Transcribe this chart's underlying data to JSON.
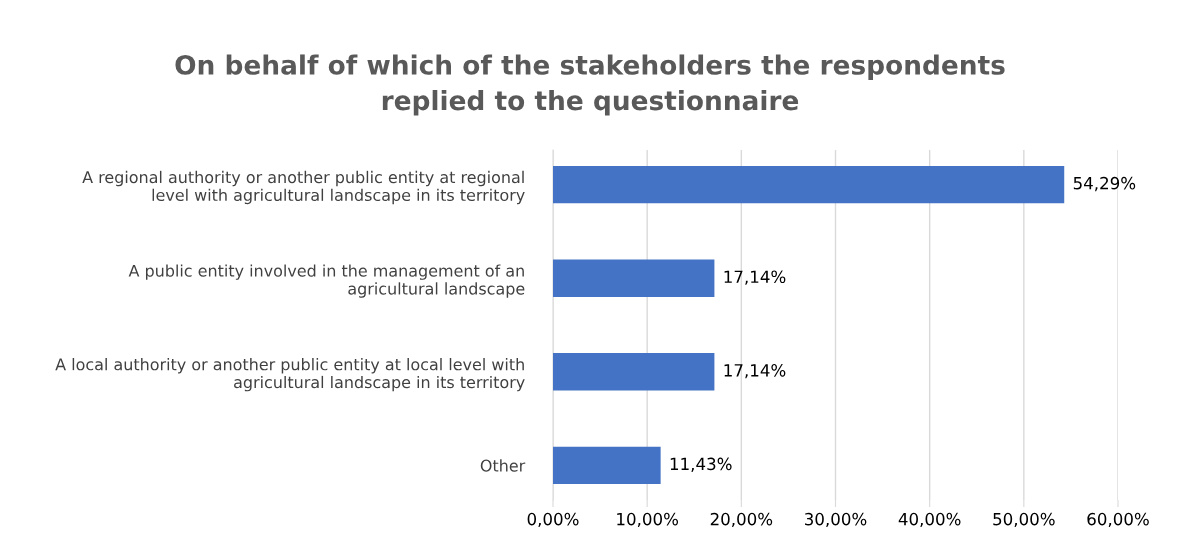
{
  "chart_data": {
    "type": "bar",
    "orientation": "horizontal",
    "title": "On behalf of which of the stakeholders the respondents\nreplied to the questionnaire",
    "categories": [
      "A regional authority or another public entity at regional\nlevel with agricultural landscape in its territory",
      "A public entity involved in the management of an\nagricultural landscape",
      "A local authority or another public entity at local level with\nagricultural landscape in its territory",
      "Other"
    ],
    "values": [
      54.29,
      17.14,
      17.14,
      11.43
    ],
    "value_labels": [
      "54,29%",
      "17,14%",
      "17,14%",
      "11,43%"
    ],
    "color": "#4472c4",
    "xlim": [
      0,
      60
    ],
    "xticks": [
      {
        "value": 0,
        "label": "0,00%"
      },
      {
        "value": 10,
        "label": "10,00%"
      },
      {
        "value": 20,
        "label": "20,00%"
      },
      {
        "value": 30,
        "label": "30,00%"
      },
      {
        "value": 40,
        "label": "40,00%"
      },
      {
        "value": 50,
        "label": "50,00%"
      },
      {
        "value": 60,
        "label": "60,00%"
      }
    ],
    "grid": "x"
  }
}
